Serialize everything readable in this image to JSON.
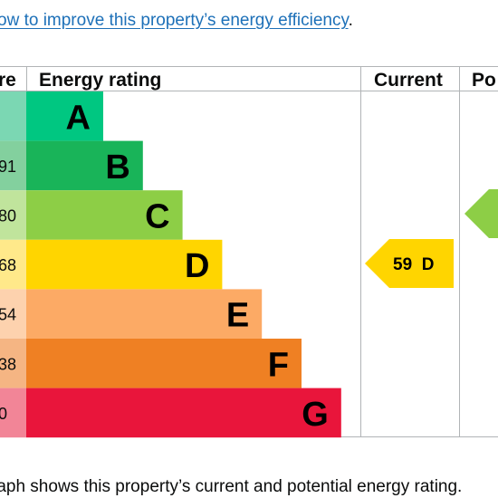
{
  "intro": {
    "link_text": "ow to improve this property’s energy efficiency",
    "trailing": "."
  },
  "table": {
    "headers": {
      "score": "re",
      "rating": "Energy rating",
      "current": "Current",
      "potential": "Po"
    }
  },
  "chart_data": {
    "type": "bar",
    "title": "Energy rating",
    "categories": [
      "A",
      "B",
      "C",
      "D",
      "E",
      "F",
      "G"
    ],
    "score_labels": [
      "",
      "91",
      "80",
      "68",
      "54",
      "38",
      "0"
    ],
    "values": [
      1,
      2,
      3,
      4,
      5,
      6,
      7
    ],
    "colors": [
      "#00c781",
      "#19b459",
      "#8dce46",
      "#ffd500",
      "#fcaa65",
      "#ef8023",
      "#e9153b"
    ],
    "score_cell_colors": [
      "#7bd7b3",
      "#83d09e",
      "#c0e49c",
      "#ffe98a",
      "#fdd2ae",
      "#f5b583",
      "#f28597"
    ],
    "current": {
      "score": 59,
      "band": "D",
      "label": "59  D",
      "color": "#ffd500"
    },
    "potential": {
      "band": "C",
      "color": "#8dce46"
    }
  },
  "caption": "raph shows this property’s current and potential energy rating."
}
